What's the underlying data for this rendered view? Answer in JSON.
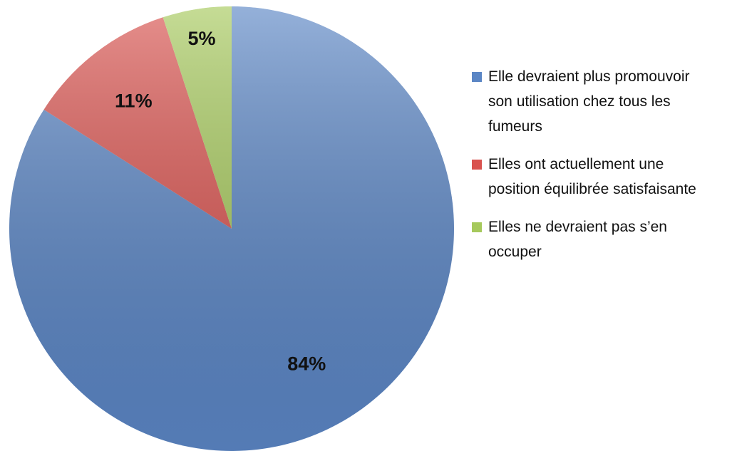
{
  "chart_data": {
    "type": "pie",
    "categories": [
      "Elle devraient plus promouvoir son utilisation chez tous les fumeurs",
      "Elles ont actuellement une position équilibrée satisfaisante",
      "Elles ne devraient pas s’en occuper"
    ],
    "values": [
      84,
      11,
      5
    ],
    "value_labels": [
      "84%",
      "11%",
      "5%"
    ],
    "colors": [
      "#5b86c5",
      "#d9534f",
      "#a6c95c"
    ],
    "legend": "right"
  }
}
